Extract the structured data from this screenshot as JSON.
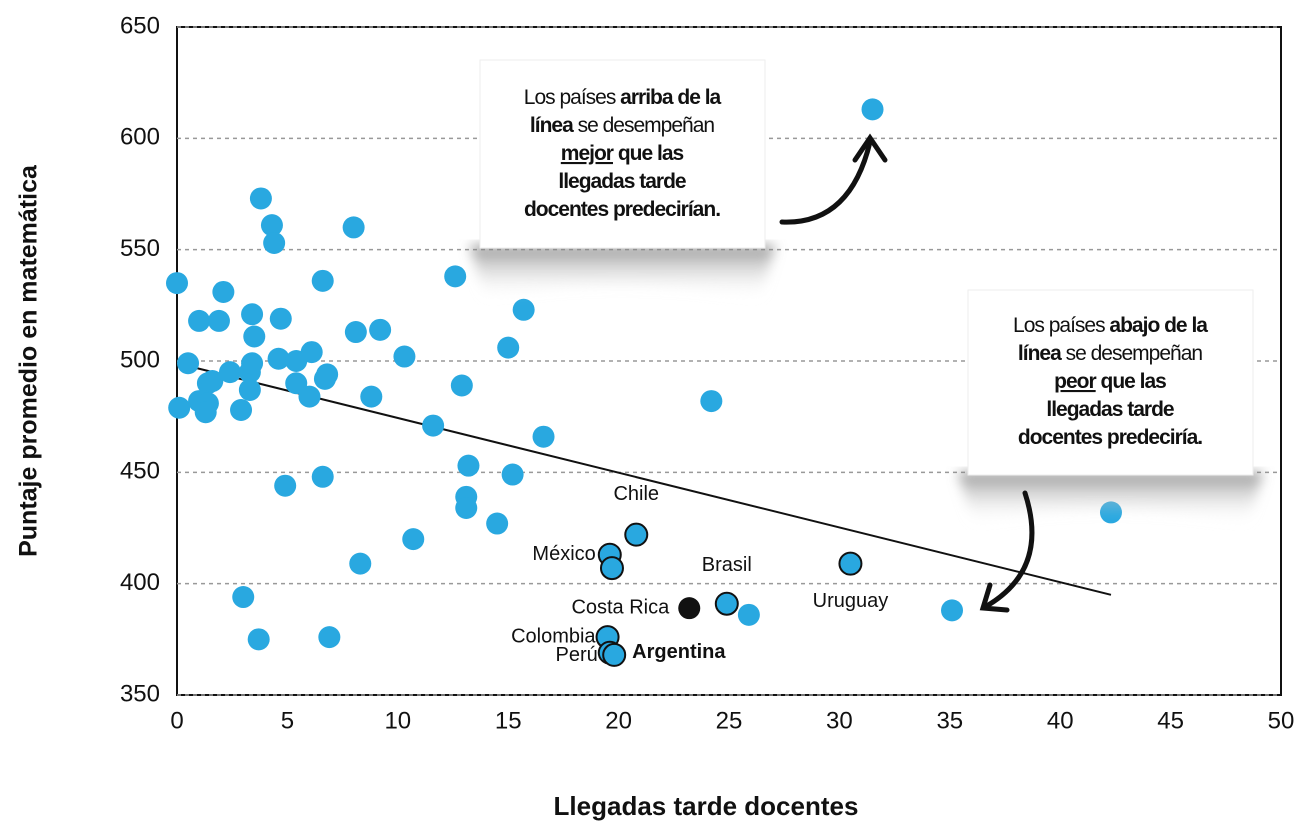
{
  "chart_data": {
    "type": "scatter",
    "xlabel": "Llegadas tarde docentes",
    "ylabel": "Puntaje promedio en matemática",
    "xlim": [
      0,
      50
    ],
    "xticks": [
      0,
      5,
      10,
      15,
      20,
      25,
      30,
      35,
      40,
      45,
      50
    ],
    "ylim": [
      350,
      650
    ],
    "yticks": [
      350,
      400,
      450,
      500,
      550,
      600,
      650
    ],
    "grid": true,
    "series": [
      {
        "color": "#29a8e0",
        "outline": false,
        "x": [
          0,
          0.5,
          0.1,
          1.0,
          1.0,
          1.4,
          1.4,
          1.3,
          1.6,
          1.9,
          2.1,
          2.4,
          2.9,
          3.3,
          3.4,
          3.3,
          3.4,
          3.5,
          3.8,
          4.3,
          4.4,
          4.7,
          4.6,
          4.9,
          5.4,
          5.4,
          6.0,
          6.1,
          6.6,
          6.8,
          6.7,
          6.6,
          8.0,
          8.1,
          8.8,
          9.2,
          10.3,
          11.6,
          12.6,
          12.9,
          13.2,
          13.1,
          13.1,
          15.2,
          14.5,
          15.0,
          15.7,
          16.6,
          24.2,
          31.5,
          42.3,
          35.1,
          3.0,
          3.7,
          6.9,
          8.3,
          10.7,
          25.9
        ],
        "y": [
          535,
          499,
          479,
          518,
          482,
          490,
          481,
          477,
          491,
          518,
          531,
          495,
          478,
          495,
          499,
          487,
          521,
          511,
          573,
          561,
          553,
          519,
          501,
          444,
          500,
          490,
          484,
          504,
          536,
          494,
          492,
          448,
          560,
          513,
          484,
          514,
          502,
          471,
          538,
          489,
          453,
          439,
          434,
          449,
          427,
          506,
          523,
          466,
          482,
          613,
          432,
          388,
          394,
          375,
          376,
          409,
          420,
          386
        ]
      },
      {
        "color": "#29a8e0",
        "outline": true,
        "x": [
          20.8,
          19.6,
          19.7,
          24.9,
          30.5,
          19.5,
          19.6,
          19.8
        ],
        "y": [
          422,
          413,
          407,
          391,
          409,
          376,
          369,
          368
        ],
        "labels": [
          "Chile",
          "México",
          null,
          "Brasil",
          "Uruguay",
          "Colombia",
          "Perú",
          "Argentina"
        ]
      },
      {
        "color": "#111111",
        "outline": false,
        "x": [
          23.2
        ],
        "y": [
          389
        ],
        "labels": [
          "Costa Rica"
        ]
      }
    ],
    "trendline": {
      "x": [
        0,
        42.3
      ],
      "y": [
        499,
        395
      ]
    },
    "annotations": [
      {
        "lines": [
          [
            {
              "text": "Los países ",
              "bold": false
            },
            {
              "text": "arriba de la",
              "bold": true
            }
          ],
          [
            {
              "text": "línea",
              "bold": true
            },
            {
              "text": " se desempeñan",
              "bold": false
            }
          ],
          [
            {
              "text": "mejor",
              "bold": true,
              "underline": true
            },
            {
              "text": " que las",
              "bold": true
            }
          ],
          [
            {
              "text": "llegadas tarde",
              "bold": true
            }
          ],
          [
            {
              "text": "docentes predecirían.",
              "bold": true
            }
          ]
        ]
      },
      {
        "lines": [
          [
            {
              "text": "Los países ",
              "bold": false
            },
            {
              "text": "abajo de la",
              "bold": true
            }
          ],
          [
            {
              "text": "línea",
              "bold": true
            },
            {
              "text": " se desempeñan",
              "bold": false
            }
          ],
          [
            {
              "text": "peor",
              "bold": true,
              "underline": true
            },
            {
              "text": " que las",
              "bold": true
            }
          ],
          [
            {
              "text": "llegadas tarde",
              "bold": true
            }
          ],
          [
            {
              "text": "docentes predeciría.",
              "bold": true
            }
          ]
        ]
      }
    ]
  }
}
